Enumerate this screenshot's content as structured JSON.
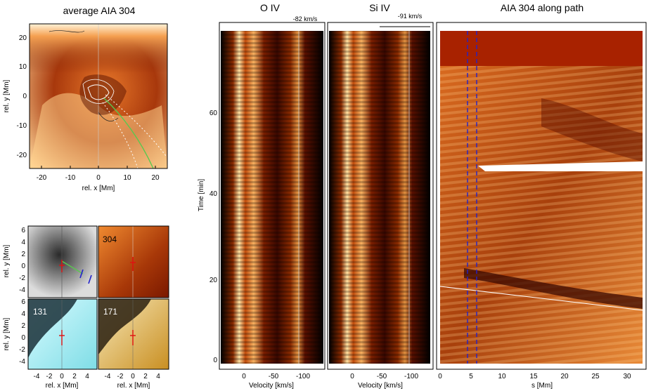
{
  "titles": {
    "average": "average AIA 304",
    "oiv": "O IV",
    "siiv": "Si IV",
    "along": "AIA 304 along path"
  },
  "annotations": {
    "oiv_velocity": "-82 km/s",
    "siiv_velocity": "-91 km/s",
    "label_304": "304",
    "label_131": "131",
    "label_171": "171"
  },
  "axis_labels": {
    "avg_x": "rel. x [Mm]",
    "avg_y": "rel. y [Mm]",
    "small_x_left": "rel. x [Mm]",
    "small_x_right": "rel. x [Mm]",
    "small_y_top": "rel. y [Mm]",
    "small_y_bottom": "rel. y [Mm]",
    "time": "Time [min]",
    "vel_oiv": "Velocity [km/s]",
    "vel_siiv": "Velocity [km/s]",
    "path_s": "s [Mm]"
  },
  "ticks": {
    "avg_x": [
      "-20",
      "-10",
      "0",
      "10",
      "20"
    ],
    "avg_y": [
      "20",
      "10",
      "0",
      "-10",
      "-20"
    ],
    "small_x": [
      "-4",
      "-2",
      "0",
      "2",
      "4"
    ],
    "small_y": [
      "6",
      "4",
      "2",
      "0",
      "-2",
      "-4"
    ],
    "time": [
      "0",
      "20",
      "40",
      "60"
    ],
    "velocity": [
      "0",
      "-50",
      "-100"
    ],
    "path_s": [
      "0",
      "5",
      "10",
      "15",
      "20",
      "25",
      "30"
    ]
  },
  "colors": {
    "aia304_dark": "#4a0a00",
    "aia304_mid": "#c04a10",
    "aia304_bright": "#ffd08a",
    "aia131": "#8ee6ee",
    "aia171": "#e0b040",
    "gray": "#9a9a9a",
    "path_green": "#59c94f",
    "dashed_blue": "#2222cc",
    "marker_red": "#e01010"
  }
}
